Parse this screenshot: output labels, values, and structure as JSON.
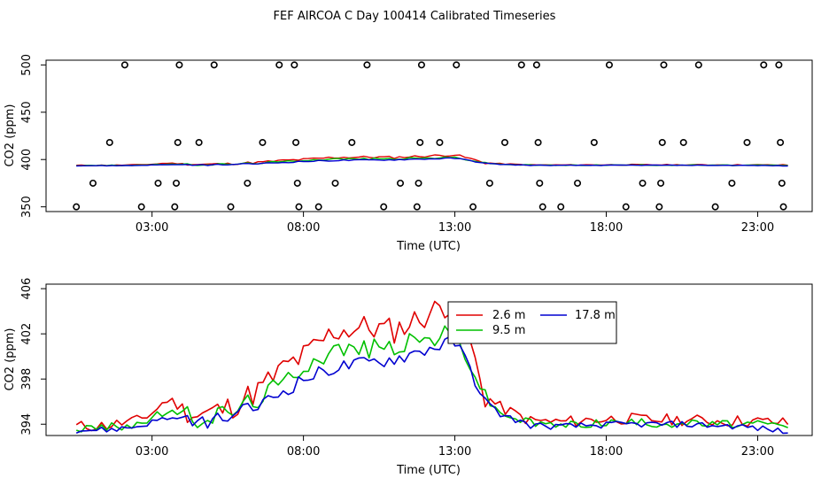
{
  "title": "FEF AIRCOA C  Day 100414  Calibrated Timeseries",
  "chart_data": [
    {
      "type": "scatter",
      "xlabel": "Time (UTC)",
      "ylabel": "CO2 (ppm)",
      "xlim": [
        -0.5,
        24.8
      ],
      "ylim": [
        345,
        505
      ],
      "xticks": [
        3,
        8,
        13,
        18,
        23
      ],
      "xtick_labels": [
        "03:00",
        "08:00",
        "13:00",
        "18:00",
        "23:00"
      ],
      "yticks": [
        350,
        400,
        450,
        500
      ],
      "ytick_labels": [
        "350",
        "400",
        "450",
        "500"
      ],
      "calibration_points": [
        {
          "x": 0.5,
          "y": 350
        },
        {
          "x": 1.05,
          "y": 375
        },
        {
          "x": 1.6,
          "y": 418
        },
        {
          "x": 2.1,
          "y": 500
        },
        {
          "x": 2.65,
          "y": 350
        },
        {
          "x": 3.2,
          "y": 375
        },
        {
          "x": 3.75,
          "y": 350
        },
        {
          "x": 3.8,
          "y": 375
        },
        {
          "x": 3.85,
          "y": 418
        },
        {
          "x": 3.9,
          "y": 500
        },
        {
          "x": 4.55,
          "y": 418
        },
        {
          "x": 5.05,
          "y": 500
        },
        {
          "x": 5.6,
          "y": 350
        },
        {
          "x": 6.15,
          "y": 375
        },
        {
          "x": 6.65,
          "y": 418
        },
        {
          "x": 7.2,
          "y": 500
        },
        {
          "x": 7.7,
          "y": 500
        },
        {
          "x": 7.75,
          "y": 418
        },
        {
          "x": 7.8,
          "y": 375
        },
        {
          "x": 7.85,
          "y": 350
        },
        {
          "x": 8.5,
          "y": 350
        },
        {
          "x": 9.05,
          "y": 375
        },
        {
          "x": 9.6,
          "y": 418
        },
        {
          "x": 10.1,
          "y": 500
        },
        {
          "x": 10.65,
          "y": 350
        },
        {
          "x": 11.2,
          "y": 375
        },
        {
          "x": 11.75,
          "y": 350
        },
        {
          "x": 11.8,
          "y": 375
        },
        {
          "x": 11.85,
          "y": 418
        },
        {
          "x": 11.9,
          "y": 500
        },
        {
          "x": 12.5,
          "y": 418
        },
        {
          "x": 13.05,
          "y": 500
        },
        {
          "x": 13.6,
          "y": 350
        },
        {
          "x": 14.15,
          "y": 375
        },
        {
          "x": 14.65,
          "y": 418
        },
        {
          "x": 15.2,
          "y": 500
        },
        {
          "x": 15.7,
          "y": 500
        },
        {
          "x": 15.75,
          "y": 418
        },
        {
          "x": 15.8,
          "y": 375
        },
        {
          "x": 15.9,
          "y": 350
        },
        {
          "x": 16.5,
          "y": 350
        },
        {
          "x": 17.05,
          "y": 375
        },
        {
          "x": 17.6,
          "y": 418
        },
        {
          "x": 18.1,
          "y": 500
        },
        {
          "x": 18.65,
          "y": 350
        },
        {
          "x": 19.2,
          "y": 375
        },
        {
          "x": 19.75,
          "y": 350
        },
        {
          "x": 19.8,
          "y": 375
        },
        {
          "x": 19.85,
          "y": 418
        },
        {
          "x": 19.9,
          "y": 500
        },
        {
          "x": 20.55,
          "y": 418
        },
        {
          "x": 21.05,
          "y": 500
        },
        {
          "x": 21.6,
          "y": 350
        },
        {
          "x": 22.15,
          "y": 375
        },
        {
          "x": 22.65,
          "y": 418
        },
        {
          "x": 23.2,
          "y": 500
        },
        {
          "x": 23.7,
          "y": 500
        },
        {
          "x": 23.75,
          "y": 418
        },
        {
          "x": 23.8,
          "y": 375
        },
        {
          "x": 23.85,
          "y": 350
        }
      ],
      "series_anchor_x": [
        0.5,
        1.5,
        2.5,
        3.0,
        3.5,
        4.5,
        5.5,
        6.5,
        7.5,
        8.0,
        9.0,
        10.0,
        11.0,
        12.0,
        12.5,
        13.0,
        13.5,
        14.0,
        14.5,
        15.5,
        16.5,
        17.5,
        18.5,
        19.5,
        20.5,
        21.5,
        22.5,
        23.5,
        24.0
      ],
      "series": [
        {
          "name": "2.6 m",
          "color": "#e00000",
          "values": [
            393.8,
            393.9,
            394.3,
            395.0,
            396.2,
            394.8,
            395.4,
            397.0,
            399.3,
            400.0,
            402.2,
            402.6,
            402.3,
            403.6,
            404.3,
            405.0,
            401.0,
            396.5,
            395.5,
            394.3,
            394.2,
            394.4,
            394.5,
            394.4,
            394.4,
            394.3,
            394.3,
            394.2,
            394.1
          ],
          "noise": 0.75
        },
        {
          "name": "9.5 m",
          "color": "#00c000",
          "values": [
            393.6,
            393.7,
            394.0,
            394.5,
            395.2,
            394.5,
            395.0,
            396.3,
            398.0,
            399.3,
            400.6,
            400.7,
            400.9,
            401.5,
            401.8,
            402.2,
            399.5,
            396.3,
            395.0,
            394.1,
            393.9,
            394.1,
            394.2,
            394.1,
            394.1,
            394.0,
            394.0,
            393.9,
            393.8
          ],
          "noise": 0.55
        },
        {
          "name": "17.8 m",
          "color": "#0000d0",
          "values": [
            393.5,
            393.5,
            393.8,
            394.2,
            394.6,
            394.1,
            394.6,
            395.6,
            397.2,
            398.0,
            399.0,
            399.4,
            399.8,
            400.6,
            401.0,
            401.3,
            399.0,
            396.0,
            394.9,
            393.9,
            393.8,
            393.9,
            394.0,
            394.0,
            394.0,
            393.9,
            393.8,
            393.5,
            393.3
          ],
          "noise": 0.4
        }
      ]
    },
    {
      "type": "line",
      "xlabel": "Time (UTC)",
      "ylabel": "CO2 (ppm)",
      "xlim": [
        -0.5,
        24.8
      ],
      "ylim": [
        393.0,
        406.4
      ],
      "xticks": [
        3,
        8,
        13,
        18,
        23
      ],
      "xtick_labels": [
        "03:00",
        "08:00",
        "13:00",
        "18:00",
        "23:00"
      ],
      "yticks": [
        394,
        398,
        402,
        406
      ],
      "ytick_labels": [
        "394",
        "398",
        "402",
        "406"
      ],
      "legend": {
        "position": "top-right",
        "entries": [
          "2.6 m",
          "17.8 m",
          "9.5 m"
        ]
      }
    }
  ]
}
